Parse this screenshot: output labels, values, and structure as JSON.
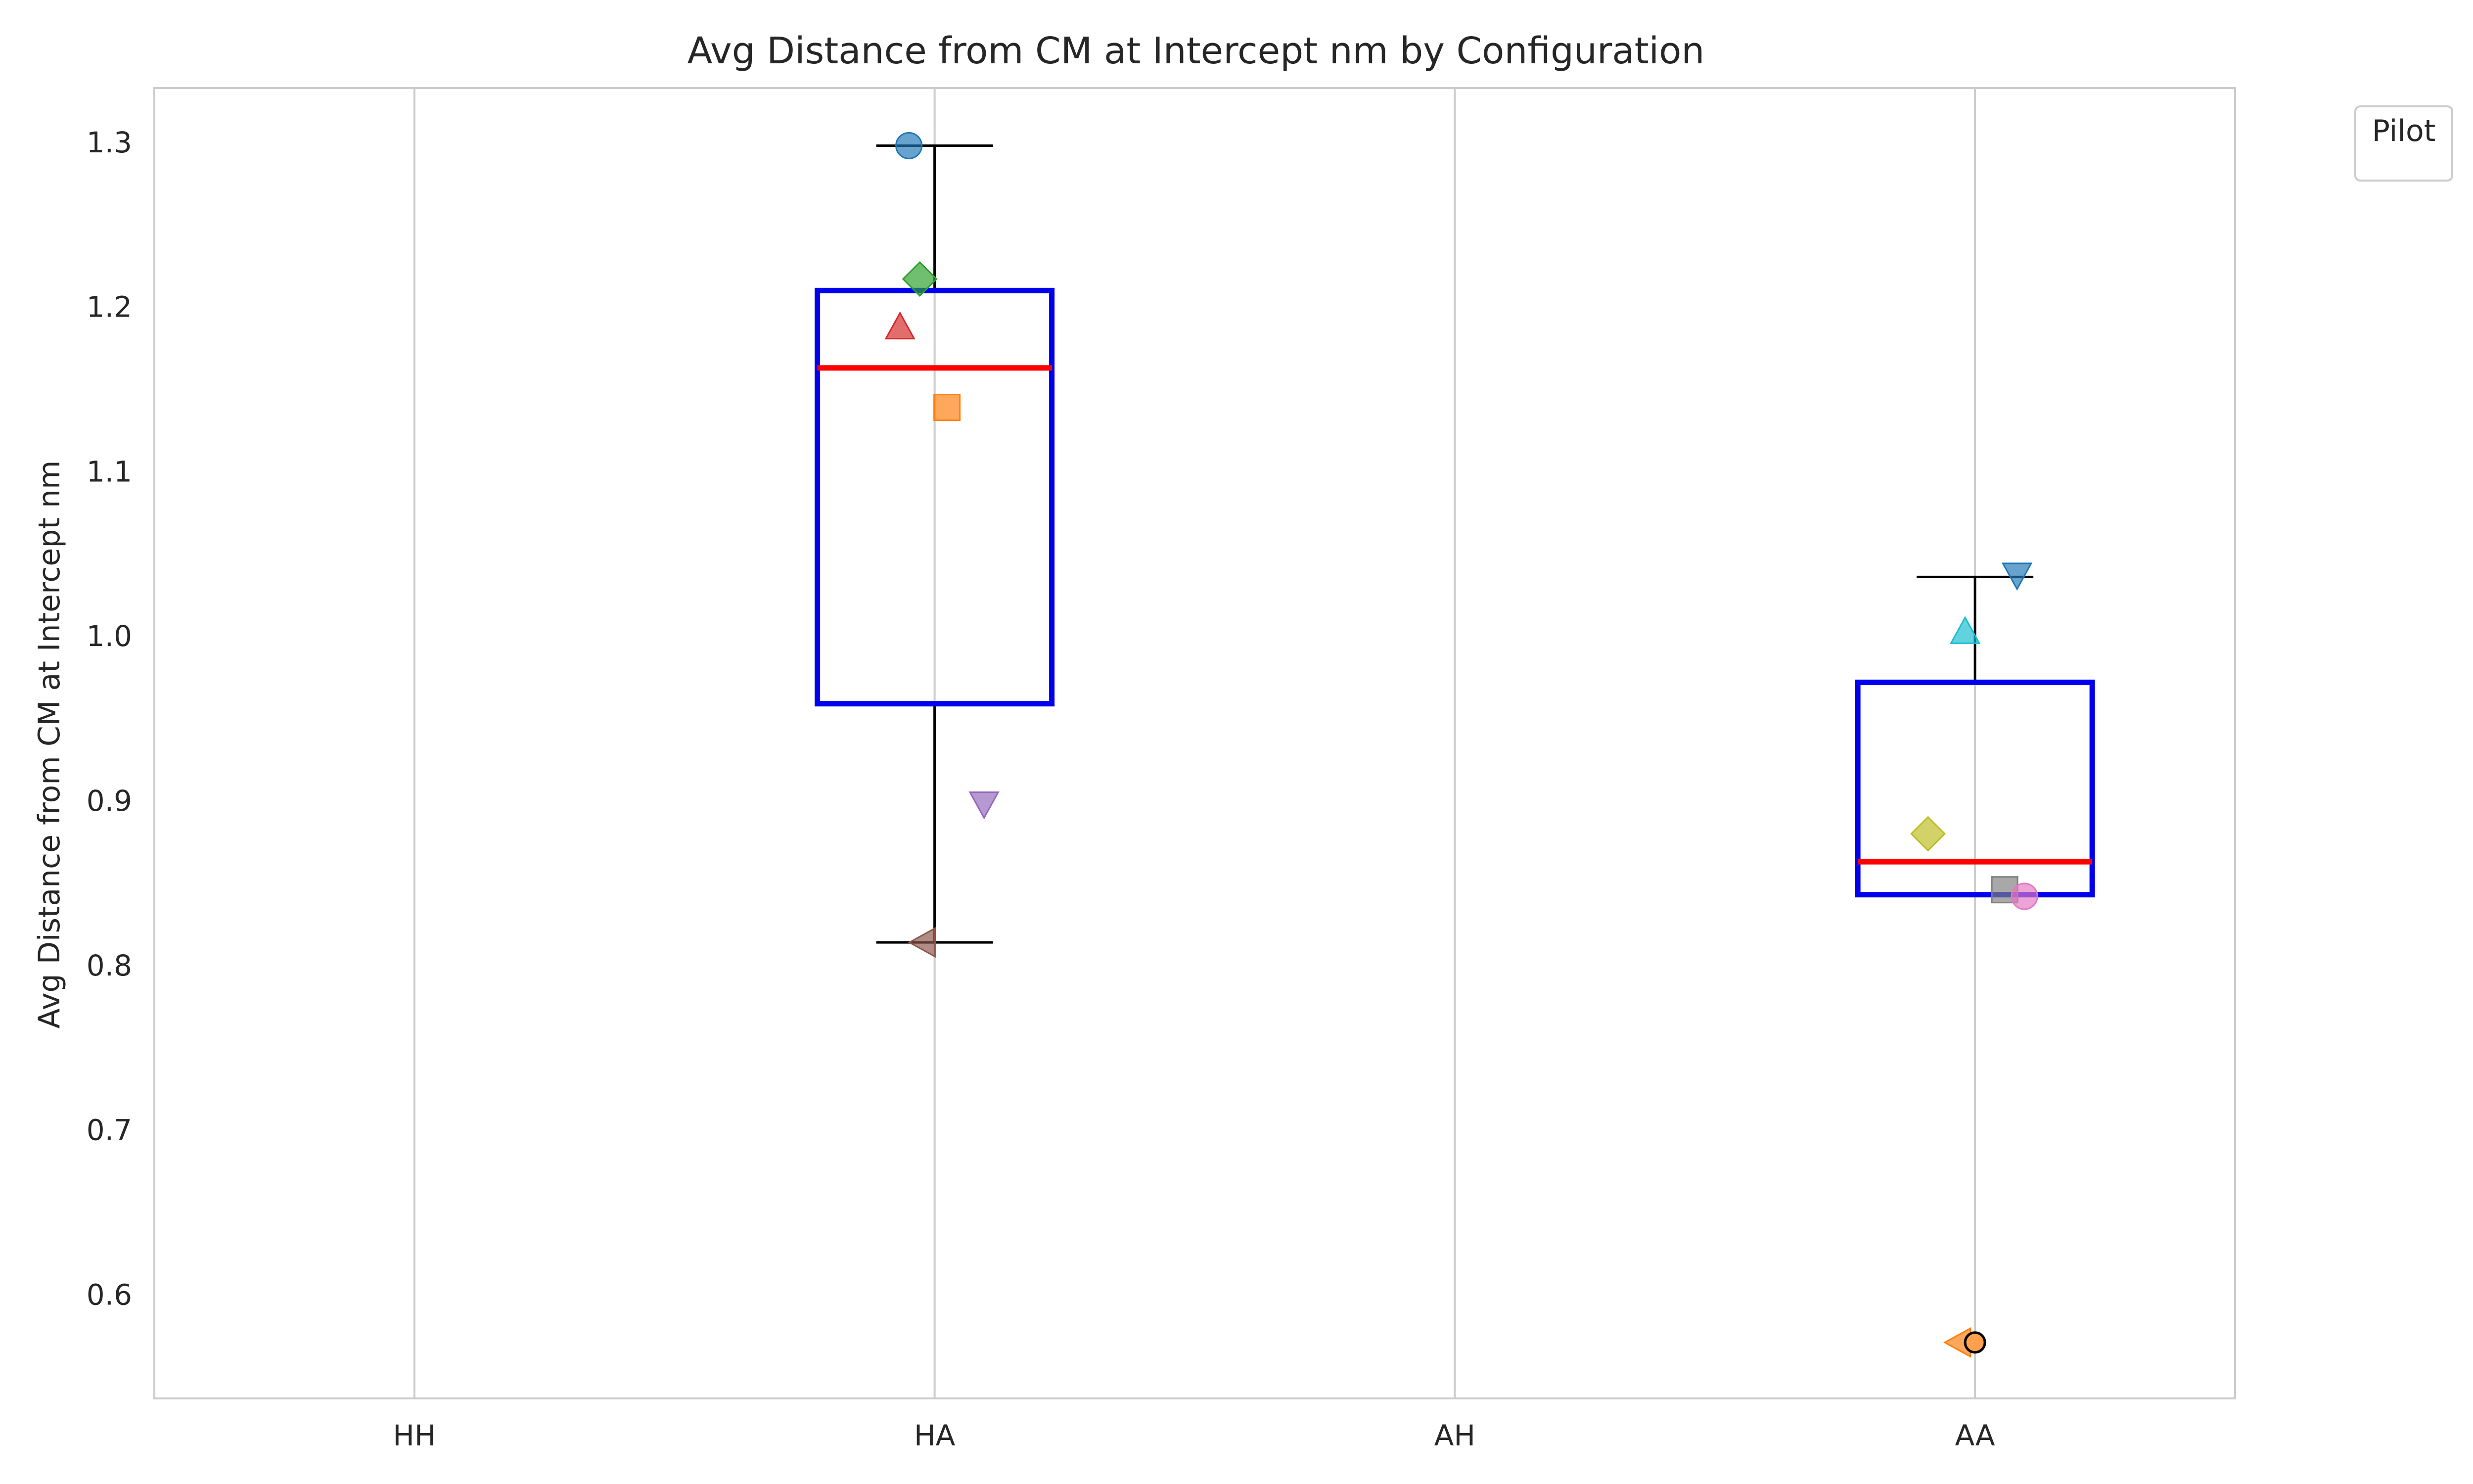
{
  "chart_data": {
    "type": "box",
    "title": "Avg Distance from CM at Intercept nm by Configuration",
    "xlabel": "",
    "ylabel": "Avg Distance from CM at Intercept nm",
    "categories": [
      "HH",
      "HA",
      "AH",
      "AA"
    ],
    "ylim": [
      0.537,
      1.333
    ],
    "yticks": [
      0.6,
      0.7,
      0.8,
      0.9,
      1.0,
      1.1,
      1.2,
      1.3
    ],
    "ytick_labels": [
      "0.6",
      "0.7",
      "0.8",
      "0.9",
      "1.0",
      "1.1",
      "1.2",
      "1.3"
    ],
    "grid": "vertical",
    "legend": {
      "title": "Pilot",
      "position": "top-right outside"
    },
    "colors": {
      "box": "#0000ee",
      "median": "#ff0000",
      "whisker": "#000000",
      "grid": "#cccccc",
      "spine": "#cccccc"
    },
    "boxes": [
      {
        "category": "HA",
        "whisker_low": 0.814,
        "q1": 0.959,
        "median": 1.163,
        "q3": 1.21,
        "whisker_high": 1.298
      },
      {
        "category": "AA",
        "whisker_low": 0.843,
        "q1": 0.843,
        "median": 0.863,
        "q3": 0.972,
        "whisker_high": 1.036
      }
    ],
    "points": [
      {
        "category": "HA",
        "y": 1.298,
        "marker": "circle",
        "color": "#1f77b4"
      },
      {
        "category": "HA",
        "y": 1.217,
        "marker": "diamond",
        "color": "#2ca02c"
      },
      {
        "category": "HA",
        "y": 1.187,
        "marker": "triangle-up",
        "color": "#d62728"
      },
      {
        "category": "HA",
        "y": 1.139,
        "marker": "square",
        "color": "#ff7f0e"
      },
      {
        "category": "HA",
        "y": 0.899,
        "marker": "triangle-down",
        "color": "#9467bd"
      },
      {
        "category": "HA",
        "y": 0.814,
        "marker": "triangle-left",
        "color": "#8c564b"
      },
      {
        "category": "AA",
        "y": 1.038,
        "marker": "triangle-down",
        "color": "#1f77b4"
      },
      {
        "category": "AA",
        "y": 1.002,
        "marker": "triangle-up",
        "color": "#17becf"
      },
      {
        "category": "AA",
        "y": 0.88,
        "marker": "diamond",
        "color": "#bcbd22"
      },
      {
        "category": "AA",
        "y": 0.846,
        "marker": "square",
        "color": "#7f7f7f"
      },
      {
        "category": "AA",
        "y": 0.842,
        "marker": "circle",
        "color": "#e377c2"
      },
      {
        "category": "AA",
        "y": 0.571,
        "marker": "triangle-left",
        "color": "#ff7f0e"
      }
    ],
    "outliers": [
      {
        "category": "AA",
        "y": 0.571,
        "color": "#ffa04d"
      }
    ]
  }
}
